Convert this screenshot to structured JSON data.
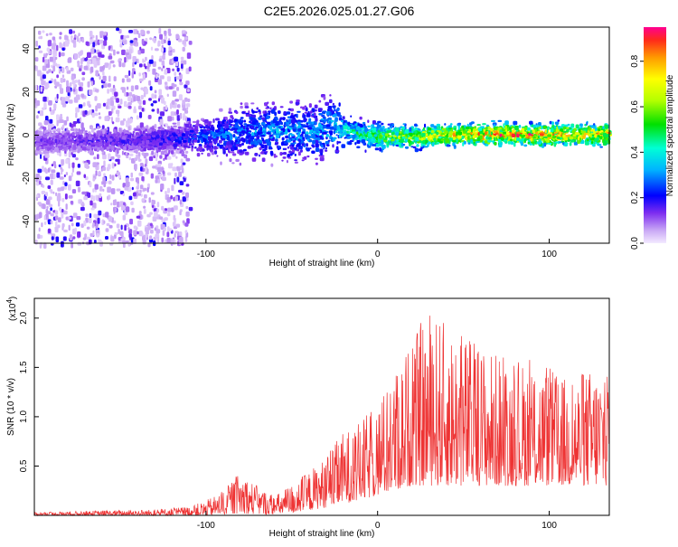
{
  "title": "C2E5.2026.025.01.27.G06",
  "charts": [
    {
      "type": "heatmap",
      "xlabel": "Height of straight line (km)",
      "ylabel": "Frequency (Hz)",
      "xlim": [
        -200,
        135
      ],
      "ylim": [
        -50,
        50
      ],
      "xticks": [
        -100,
        0,
        100
      ],
      "yticks": [
        -40,
        -20,
        0,
        20,
        40
      ],
      "colorbar": {
        "label": "Normalized spectral amplitude",
        "range": [
          0,
          0.95
        ],
        "ticks": [
          0.0,
          0.2,
          0.4,
          0.6,
          0.8
        ]
      },
      "grid": false
    },
    {
      "type": "line",
      "xlabel": "Height of straight line (km)",
      "ylabel": "SNR (10 * v/v)",
      "multiplier_base": "(x10",
      "multiplier_exp": "4",
      "multiplier_close": ")",
      "xlim": [
        -200,
        135
      ],
      "ylim": [
        0,
        2.2
      ],
      "xticks": [
        -100,
        0,
        100
      ],
      "yticks": [
        0.5,
        1.0,
        1.5,
        2.0
      ],
      "ytick_labels": [
        "0.5",
        "1.0",
        "1.5",
        "2.0"
      ],
      "color": "#ee3333",
      "envelope": {
        "x": [
          -200,
          -160,
          -130,
          -110,
          -100,
          -90,
          -80,
          -70,
          -60,
          -50,
          -40,
          -30,
          -20,
          -10,
          0,
          10,
          20,
          30,
          40,
          50,
          60,
          70,
          80,
          90,
          100,
          110,
          120,
          135
        ],
        "max": [
          0.03,
          0.05,
          0.06,
          0.09,
          0.15,
          0.25,
          0.45,
          0.3,
          0.2,
          0.32,
          0.45,
          0.6,
          0.85,
          0.95,
          1.15,
          1.45,
          1.8,
          2.1,
          1.95,
          1.85,
          1.75,
          1.65,
          1.55,
          1.6,
          1.5,
          1.4,
          1.45,
          1.6
        ],
        "min": [
          0.0,
          0.0,
          0.0,
          0.0,
          0.0,
          0.01,
          0.02,
          0.01,
          0.01,
          0.02,
          0.05,
          0.08,
          0.12,
          0.15,
          0.2,
          0.25,
          0.3,
          0.3,
          0.3,
          0.3,
          0.3,
          0.3,
          0.3,
          0.3,
          0.3,
          0.3,
          0.3,
          0.3
        ]
      }
    }
  ],
  "heatmap_data": {
    "noise_region": [
      -200,
      -110
    ],
    "ridge": {
      "x": [
        -200,
        -150,
        -120,
        -100,
        -80,
        -60,
        -40,
        -25,
        -20,
        -10,
        0,
        20,
        50,
        80,
        100,
        135
      ],
      "y": [
        -2,
        -2,
        -1,
        0,
        2,
        3,
        2,
        5,
        3,
        1,
        0,
        0,
        1,
        1,
        1,
        1
      ],
      "width": [
        8,
        8,
        9,
        12,
        16,
        18,
        18,
        20,
        10,
        8,
        8,
        7,
        7,
        7,
        7,
        7
      ],
      "amp": [
        0.15,
        0.18,
        0.22,
        0.28,
        0.32,
        0.35,
        0.35,
        0.38,
        0.45,
        0.55,
        0.6,
        0.7,
        0.85,
        0.9,
        0.85,
        0.82
      ]
    }
  }
}
